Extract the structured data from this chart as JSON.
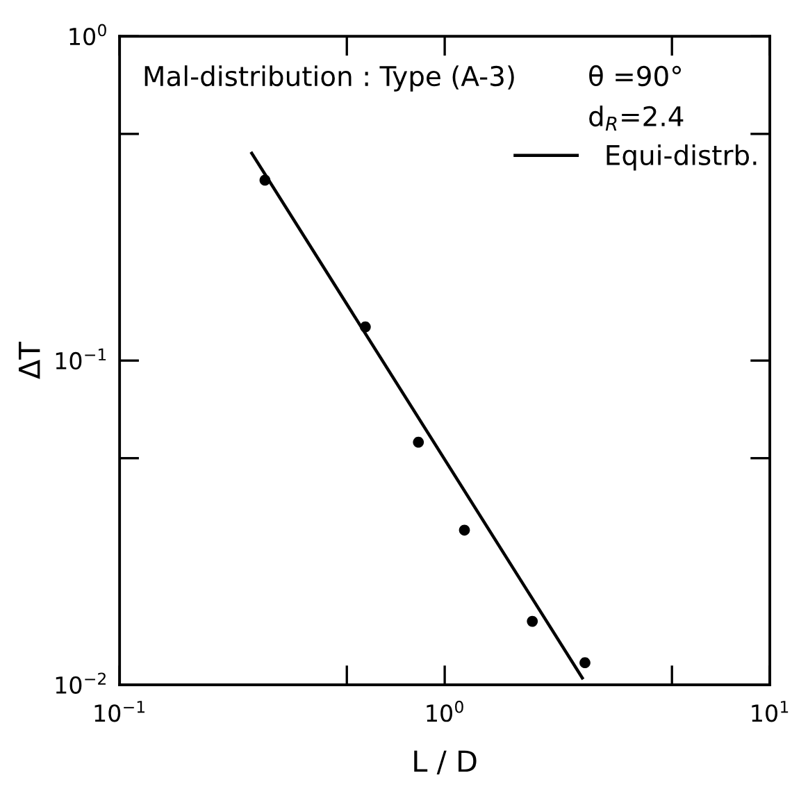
{
  "chart_data": {
    "type": "scatter",
    "xlabel": "L / D",
    "ylabel": "ΔT",
    "log": "xy",
    "xlim": [
      0.1,
      10
    ],
    "ylim": [
      0.01,
      1
    ],
    "xticks": [
      {
        "value": 0.1,
        "label": "10$^{−1}$"
      },
      {
        "value": 0.5,
        "label": null
      },
      {
        "value": 1,
        "label": "10$^{0}$"
      },
      {
        "value": 5,
        "label": null
      },
      {
        "value": 10,
        "label": "10$^{1}$"
      }
    ],
    "yticks": [
      {
        "value": 0.01,
        "label": "10$^{−2}$"
      },
      {
        "value": 0.05,
        "label": null
      },
      {
        "value": 0.1,
        "label": "10$^{−1}$"
      },
      {
        "value": 0.5,
        "label": null
      },
      {
        "value": 1,
        "label": "10$^{0}$"
      }
    ],
    "legend": "top right",
    "annotations": [
      "Mal-distribution : Type (A-3)",
      "θ =90°",
      "d$_{R}$=2.4"
    ],
    "series": [
      {
        "color": "#000000",
        "marker": "circle",
        "x": [
          0.28,
          0.57,
          0.83,
          1.15,
          1.86,
          2.7
        ],
        "values": [
          0.36,
          0.127,
          0.056,
          0.03,
          0.0157,
          0.0117
        ]
      },
      {
        "type": "line",
        "name": "Equi-distrb.",
        "color": "#000000",
        "marker": "none",
        "line_style": "solid",
        "x": [
          0.255,
          2.65
        ],
        "values": [
          0.436,
          0.0105
        ]
      }
    ]
  }
}
